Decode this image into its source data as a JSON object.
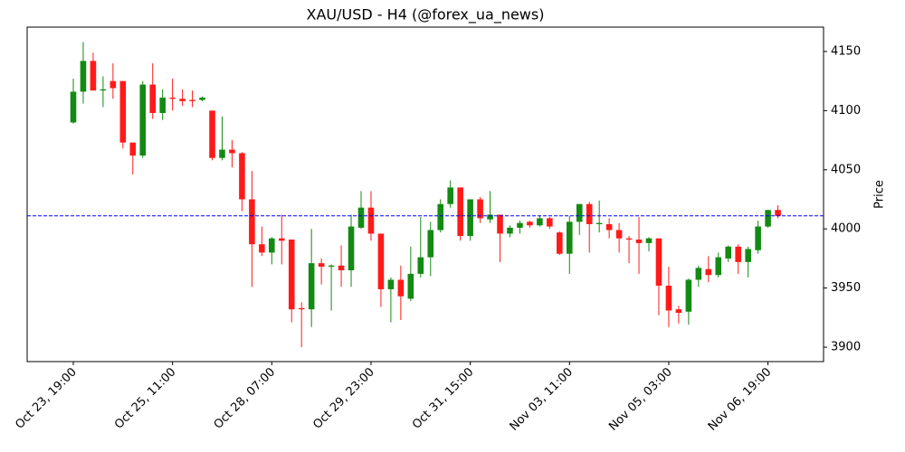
{
  "chart_data": {
    "type": "candlestick",
    "title": "XAU/USD - H4 (@forex_ua_news)",
    "y_label": "Price",
    "categories": [
      "Oct 23, 19:00",
      null,
      null,
      null,
      null,
      null,
      null,
      null,
      null,
      null,
      "Oct 25, 11:00",
      null,
      null,
      null,
      null,
      null,
      null,
      null,
      null,
      null,
      "Oct 28, 07:00",
      null,
      null,
      null,
      null,
      null,
      null,
      null,
      null,
      null,
      "Oct 29, 23:00",
      null,
      null,
      null,
      null,
      null,
      null,
      null,
      null,
      null,
      "Oct 31, 15:00",
      null,
      null,
      null,
      null,
      null,
      null,
      null,
      null,
      null,
      "Nov 03, 11:00",
      null,
      null,
      null,
      null,
      null,
      null,
      null,
      null,
      null,
      "Nov 05, 03:00",
      null,
      null,
      null,
      null,
      null,
      null,
      null,
      null,
      null,
      "Nov 06, 19:00",
      null
    ],
    "open": [
      4090,
      4116,
      4142,
      4117,
      4125,
      4125,
      4073,
      4062,
      4122,
      4098,
      4111,
      4110,
      4109,
      4109,
      4100,
      4060,
      4067,
      4064,
      4025,
      3987,
      3980,
      3992,
      3991,
      3933,
      3932,
      3971,
      3968,
      3969,
      3965,
      4001,
      4018,
      3996,
      3949,
      3957,
      3941,
      3962,
      3976,
      3999,
      4021,
      4035,
      3994,
      4025,
      4008,
      4012,
      3996,
      4001,
      4006,
      4003,
      4009,
      3997,
      3979,
      4006,
      4021,
      4004,
      4004,
      3999,
      3992,
      3991,
      3988,
      3992,
      3952,
      3932,
      3930,
      3957,
      3966,
      3961,
      3975,
      3985,
      3972,
      3982,
      4002,
      4016
    ],
    "high": [
      4127,
      4158,
      4149,
      4129,
      4140,
      4125,
      4073,
      4125,
      4140,
      4118,
      4127,
      4118,
      4117,
      4112,
      4100,
      4095,
      4075,
      4065,
      4049,
      4002,
      3993,
      4012,
      3991,
      3938,
      4000,
      3975,
      3970,
      3986,
      4012,
      4032,
      4032,
      3996,
      3959,
      3969,
      3985,
      4010,
      4006,
      4025,
      4041,
      4035,
      4025,
      4027,
      4032,
      4012,
      4003,
      4007,
      4007,
      4011,
      4010,
      3998,
      4011,
      4021,
      4023,
      4024,
      4009,
      4005,
      3994,
      4010,
      3993,
      3992,
      3968,
      3935,
      3958,
      3969,
      3977,
      3980,
      3986,
      3987,
      3985,
      4007,
      4016,
      4020
    ],
    "low": [
      4089,
      4106,
      4117,
      4103,
      4110,
      4068,
      4046,
      4060,
      4093,
      4092,
      4100,
      4104,
      4103,
      4108,
      4058,
      4058,
      4052,
      4015,
      3951,
      3977,
      3970,
      3970,
      3921,
      3900,
      3917,
      3953,
      3931,
      3951,
      3951,
      4000,
      3990,
      3934,
      3921,
      3923,
      3939,
      3959,
      3960,
      3997,
      4018,
      3990,
      3990,
      4005,
      4005,
      3972,
      3993,
      3996,
      4001,
      4002,
      4000,
      3978,
      3962,
      3995,
      3980,
      3997,
      3992,
      3980,
      3971,
      3962,
      3981,
      3927,
      3917,
      3920,
      3919,
      3951,
      3955,
      3959,
      3972,
      3962,
      3959,
      3979,
      4001,
      4009
    ],
    "close": [
      4116,
      4142,
      4117,
      4118,
      4119,
      4073,
      4062,
      4122,
      4098,
      4111,
      4110,
      4108,
      4108,
      4111,
      4060,
      4067,
      4064,
      4025,
      3987,
      3980,
      3992,
      3990,
      3932,
      3932,
      3971,
      3968,
      3969,
      3965,
      4002,
      4018,
      3996,
      3949,
      3957,
      3943,
      3962,
      3976,
      3999,
      4021,
      4035,
      3994,
      4025,
      4009,
      4012,
      3996,
      4001,
      4005,
      4003,
      4009,
      4002,
      3979,
      4006,
      4021,
      4004,
      4005,
      3999,
      3992,
      3991,
      3988,
      3992,
      3952,
      3931,
      3929,
      3957,
      3967,
      3961,
      3976,
      3985,
      3972,
      3983,
      4002,
      4016,
      4011
    ],
    "up_color": "#138a13",
    "down_color": "#ff1a1a",
    "reference_line": 4011,
    "reference_color": "#0000ff",
    "xlim": [
      -4.65,
      75.6
    ],
    "ylim": [
      3887.8,
      4170.6
    ],
    "yticks": [
      3900,
      3950,
      4000,
      4050,
      4100,
      4150
    ]
  }
}
